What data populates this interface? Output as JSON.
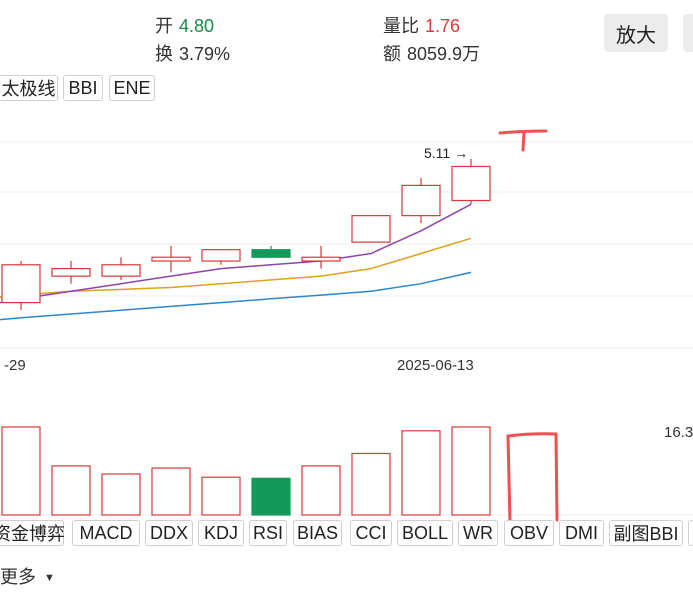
{
  "quote": {
    "open_label": "开",
    "open_value": "4.80",
    "open_color": "#1a8a4a",
    "turnover_label": "换",
    "turnover_value": "3.79%",
    "volratio_label": "量比",
    "volratio_value": "1.76",
    "volratio_color": "#e0383e",
    "amount_label": "额",
    "amount_value": "8059.9万"
  },
  "toolbar": {
    "zoom_label": "放大"
  },
  "indicator_tabs": [
    "太极线",
    "BBI",
    "ENE"
  ],
  "chart": {
    "high_marker": "5.11 →",
    "date_left": "-29",
    "date_right": "2025-06-13",
    "volume_max_label": "16.3"
  },
  "sub_tabs": [
    "资金博弈",
    "MACD",
    "DDX",
    "KDJ",
    "RSI",
    "BIAS",
    "CCI",
    "BOLL",
    "WR",
    "OBV",
    "DMI",
    "副图BBI"
  ],
  "more_label": "更多",
  "colors": {
    "up": "#d7373b",
    "down": "#14995a",
    "ma5": "#8e44ad",
    "ma10": "#e0a020",
    "ma20": "#2a86d0",
    "annotation": "#f05050"
  },
  "chart_data": {
    "type": "candlestick",
    "candles": [
      {
        "open": 4.73,
        "close": 4.83,
        "high": 4.84,
        "low": 4.71,
        "volume": 16.3
      },
      {
        "open": 4.8,
        "close": 4.82,
        "high": 4.84,
        "low": 4.78,
        "volume": 9.1
      },
      {
        "open": 4.8,
        "close": 4.83,
        "high": 4.85,
        "low": 4.79,
        "volume": 7.6
      },
      {
        "open": 4.84,
        "close": 4.85,
        "high": 4.88,
        "low": 4.81,
        "volume": 8.7
      },
      {
        "open": 4.84,
        "close": 4.87,
        "high": 4.87,
        "low": 4.83,
        "volume": 7.0
      },
      {
        "open": 4.87,
        "close": 4.85,
        "high": 4.88,
        "low": 4.85,
        "volume": 6.8
      },
      {
        "open": 4.84,
        "close": 4.85,
        "high": 4.88,
        "low": 4.82,
        "volume": 9.1
      },
      {
        "open": 4.89,
        "close": 4.96,
        "high": 4.96,
        "low": 4.89,
        "volume": 11.4
      },
      {
        "open": 4.96,
        "close": 5.04,
        "high": 5.06,
        "low": 4.94,
        "volume": 15.6
      },
      {
        "open": 5.0,
        "close": 5.09,
        "high": 5.11,
        "low": 4.99,
        "volume": 16.3
      }
    ],
    "ma5": [
      4.74,
      4.76,
      4.78,
      4.8,
      4.82,
      4.83,
      4.84,
      4.86,
      4.92,
      4.99
    ],
    "ma10": [
      4.75,
      4.76,
      4.765,
      4.77,
      4.78,
      4.79,
      4.8,
      4.82,
      4.86,
      4.9
    ],
    "ma20": [
      4.69,
      4.7,
      4.71,
      4.72,
      4.73,
      4.74,
      4.75,
      4.76,
      4.78,
      4.81
    ],
    "price_range": [
      4.61,
      5.16
    ],
    "volume_range": [
      0,
      17.6
    ]
  }
}
